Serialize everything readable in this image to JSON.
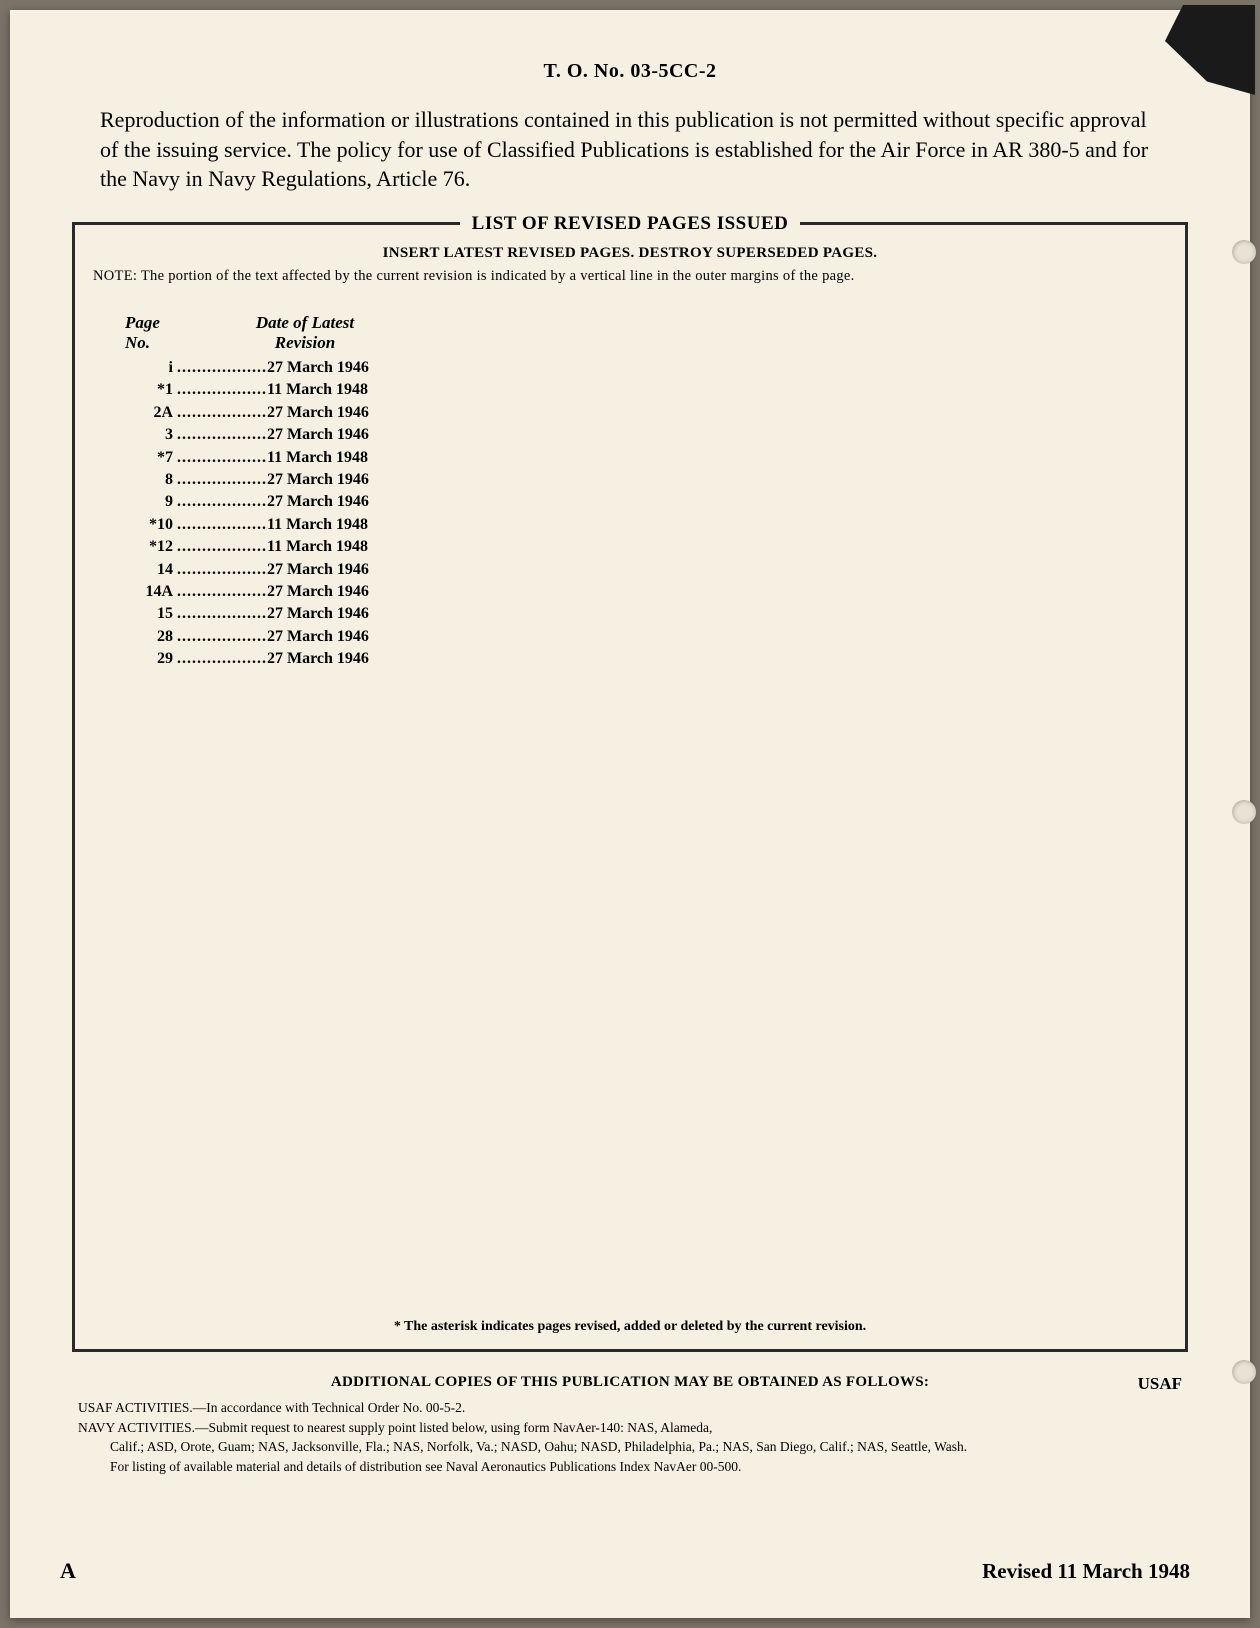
{
  "colors": {
    "page_bg": "#f5f0e1",
    "backdrop": "#7a7368",
    "text": "#1f1f1f",
    "border": "#2a2a2a"
  },
  "header": {
    "doc_number": "T. O. No. 03-5CC-2"
  },
  "intro": {
    "text": "Reproduction of the information or illustrations contained in this publication is not permitted without specific approval of the issuing service.   The policy for use of Classified Publications is established for the Air Force in AR 380-5 and for the Navy in Navy Regulations, Article 76."
  },
  "revisions_box": {
    "title": "LIST OF REVISED PAGES ISSUED",
    "instruction": "INSERT LATEST REVISED PAGES. DESTROY SUPERSEDED PAGES.",
    "note_label": "NOTE:",
    "note_text": "The portion of the text affected by the current revision is indicated by a vertical line in the outer margins of the page.",
    "columns": {
      "page": "Page\nNo.",
      "date": "Date of Latest\nRevision"
    },
    "rows": [
      {
        "page": "i",
        "date": "27 March 1946"
      },
      {
        "page": "*1",
        "date": "11 March 1948"
      },
      {
        "page": "2A",
        "date": "27 March 1946"
      },
      {
        "page": "3",
        "date": "27 March 1946"
      },
      {
        "page": "*7",
        "date": "11 March 1948"
      },
      {
        "page": "8",
        "date": "27 March 1946"
      },
      {
        "page": "9",
        "date": "27 March 1946"
      },
      {
        "page": "*10",
        "date": "11 March 1948"
      },
      {
        "page": "*12",
        "date": "11 March 1948"
      },
      {
        "page": "14",
        "date": "27 March 1946"
      },
      {
        "page": "14A",
        "date": "27 March 1946"
      },
      {
        "page": "15",
        "date": "27 March 1946"
      },
      {
        "page": "28",
        "date": "27 March 1946"
      },
      {
        "page": "29",
        "date": "27 March 1946"
      }
    ],
    "asterisk_note": "* The asterisk indicates pages revised, added or deleted by the current revision."
  },
  "additional_copies": {
    "heading": "ADDITIONAL COPIES OF THIS PUBLICATION MAY BE OBTAINED AS FOLLOWS:",
    "usaf": "USAF",
    "usaf_line": "USAF ACTIVITIES.—In accordance with Technical Order No. 00-5-2.",
    "navy_line1": "NAVY ACTIVITIES.—Submit request to nearest supply point listed below, using form NavAer-140: NAS, Alameda,",
    "navy_line2": "Calif.; ASD, Orote, Guam; NAS, Jacksonville, Fla.; NAS, Norfolk, Va.; NASD, Oahu; NASD, Philadelphia, Pa.; NAS, San Diego, Calif.; NAS, Seattle, Wash.",
    "listing_line": "For listing of available material and details of distribution see Naval Aeronautics Publications Index NavAer 00-500."
  },
  "footer": {
    "left": "A",
    "right": "Revised 11 March 1948"
  }
}
